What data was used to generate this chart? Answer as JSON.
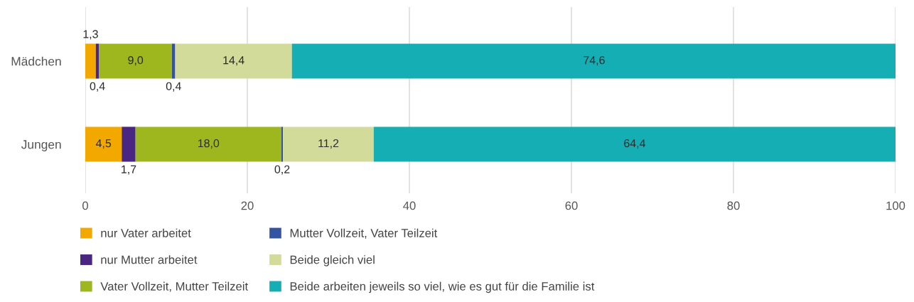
{
  "chart_data": {
    "type": "bar",
    "orientation": "horizontal",
    "stacked": true,
    "categories": [
      "Mädchen",
      "Jungen"
    ],
    "series": [
      {
        "name": "nur Vater arbeitet",
        "color": "#f3a800",
        "values": [
          1.3,
          4.5
        ],
        "value_labels": [
          "1,3",
          "4,5"
        ]
      },
      {
        "name": "nur Mutter arbeitet",
        "color": "#4a2683",
        "values": [
          0.4,
          1.7
        ],
        "value_labels": [
          "0,4",
          "1,7"
        ]
      },
      {
        "name": "Vater Vollzeit, Mutter Teilzeit",
        "color": "#9fb71e",
        "values": [
          9.0,
          18.0
        ],
        "value_labels": [
          "9,0",
          "18,0"
        ]
      },
      {
        "name": "Mutter Vollzeit, Vater Teilzeit",
        "color": "#3453a0",
        "values": [
          0.4,
          0.2
        ],
        "value_labels": [
          "0,4",
          "0,2"
        ]
      },
      {
        "name": "Beide gleich viel",
        "color": "#d3db9b",
        "values": [
          14.4,
          11.2
        ],
        "value_labels": [
          "14,4",
          "11,2"
        ]
      },
      {
        "name": "Beide arbeiten jeweils so viel, wie es gut für die Familie ist",
        "color": "#15aeb4",
        "values": [
          74.6,
          64.4
        ],
        "value_labels": [
          "74,6",
          "64,4"
        ]
      }
    ],
    "xlim": [
      0,
      100
    ],
    "xticks": [
      0,
      20,
      40,
      60,
      80,
      100
    ],
    "grid": "x",
    "legend": "bottom"
  }
}
